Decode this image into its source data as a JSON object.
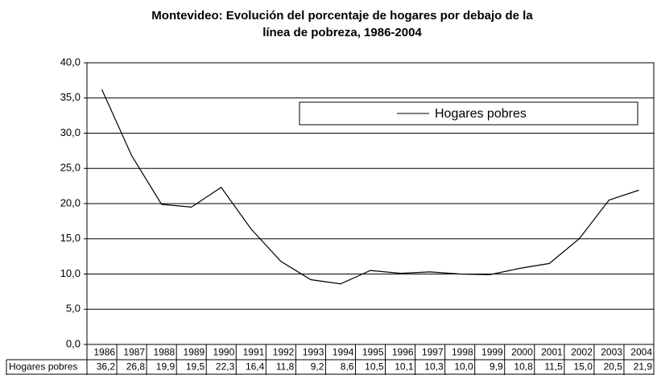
{
  "chart_data": {
    "type": "line",
    "title": [
      "Montevideo: Evolución del porcentaje de hogares por debajo de la",
      "línea de pobreza, 1986-2004"
    ],
    "categories": [
      "1986",
      "1987",
      "1988",
      "1989",
      "1990",
      "1991",
      "1992",
      "1993",
      "1994",
      "1995",
      "1996",
      "1997",
      "1998",
      "1999",
      "2000",
      "2001",
      "2002",
      "2003",
      "2004"
    ],
    "series": [
      {
        "name": "Hogares pobres",
        "color": "#000000",
        "values": [
          36.2,
          26.8,
          19.9,
          19.5,
          22.3,
          16.4,
          11.8,
          9.2,
          8.6,
          10.5,
          10.1,
          10.3,
          10.0,
          9.9,
          10.8,
          11.5,
          15.0,
          20.5,
          21.9
        ],
        "value_labels": [
          "36,2",
          "26,8",
          "19,9",
          "19,5",
          "22,3",
          "16,4",
          "11,8",
          "9,2",
          "8,6",
          "10,5",
          "10,1",
          "10,3",
          "10,0",
          "9,9",
          "10,8",
          "11,5",
          "15,0",
          "20,5",
          "21,9"
        ]
      }
    ],
    "ylim": [
      0,
      40
    ],
    "yticks": [
      {
        "value": 0,
        "label": "0,0"
      },
      {
        "value": 5,
        "label": "5,0"
      },
      {
        "value": 10,
        "label": "10,0"
      },
      {
        "value": 15,
        "label": "15,0"
      },
      {
        "value": 20,
        "label": "20,0"
      },
      {
        "value": 25,
        "label": "25,0"
      },
      {
        "value": 30,
        "label": "30,0"
      },
      {
        "value": 35,
        "label": "35,0"
      },
      {
        "value": 40,
        "label": "40,0"
      }
    ],
    "grid": true,
    "legend": "top-right"
  }
}
